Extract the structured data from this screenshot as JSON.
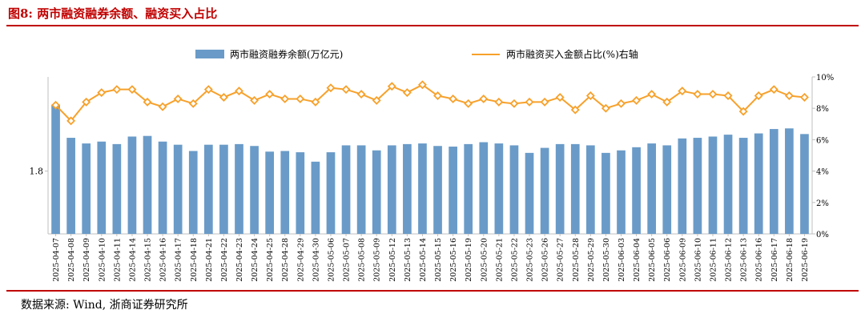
{
  "header": {
    "title": "图8:  两市融资融券余额、融资买入占比"
  },
  "footer": {
    "source": "数据来源:  Wind, 浙商证券研究所"
  },
  "colors": {
    "bar": "#6a9bc8",
    "line": "#f7a12b",
    "rule": "#c00000",
    "title": "#c00000"
  },
  "chart_data": {
    "type": "bar+line",
    "legend_position": "top",
    "grid": false,
    "categories": [
      "2025-04-07",
      "2025-04-08",
      "2025-04-09",
      "2025-04-10",
      "2025-04-11",
      "2025-04-14",
      "2025-04-15",
      "2025-04-16",
      "2025-04-17",
      "2025-04-18",
      "2025-04-21",
      "2025-04-22",
      "2025-04-23",
      "2025-04-24",
      "2025-04-25",
      "2025-04-28",
      "2025-04-29",
      "2025-04-30",
      "2025-05-06",
      "2025-05-07",
      "2025-05-08",
      "2025-05-09",
      "2025-05-12",
      "2025-05-13",
      "2025-05-14",
      "2025-05-15",
      "2025-05-16",
      "2025-05-19",
      "2025-05-20",
      "2025-05-21",
      "2025-05-22",
      "2025-05-23",
      "2025-05-26",
      "2025-05-27",
      "2025-05-28",
      "2025-05-29",
      "2025-05-30",
      "2025-06-03",
      "2025-06-04",
      "2025-06-05",
      "2025-06-06",
      "2025-06-09",
      "2025-06-10",
      "2025-06-11",
      "2025-06-12",
      "2025-06-13",
      "2025-06-16",
      "2025-06-17",
      "2025-06-18",
      "2025-06-19"
    ],
    "series": [
      {
        "name": "两市融资融券余额(万亿元)",
        "type": "bar",
        "axis": "left",
        "values": [
          1.906,
          1.853,
          1.844,
          1.847,
          1.843,
          1.855,
          1.856,
          1.847,
          1.842,
          1.832,
          1.842,
          1.842,
          1.843,
          1.84,
          1.831,
          1.832,
          1.83,
          1.815,
          1.83,
          1.841,
          1.841,
          1.833,
          1.841,
          1.843,
          1.844,
          1.84,
          1.839,
          1.843,
          1.846,
          1.844,
          1.841,
          1.829,
          1.837,
          1.843,
          1.843,
          1.841,
          1.829,
          1.833,
          1.838,
          1.844,
          1.841,
          1.852,
          1.853,
          1.855,
          1.858,
          1.853,
          1.86,
          1.867,
          1.868,
          1.859
        ]
      },
      {
        "name": "两市融资买入金额占比(%)右轴",
        "type": "line",
        "axis": "right",
        "values": [
          8.2,
          7.2,
          8.4,
          9.0,
          9.2,
          9.2,
          8.4,
          8.1,
          8.6,
          8.3,
          9.2,
          8.7,
          9.1,
          8.5,
          8.9,
          8.6,
          8.6,
          8.4,
          9.3,
          9.2,
          8.9,
          8.5,
          9.4,
          9.0,
          9.5,
          8.8,
          8.6,
          8.3,
          8.6,
          8.4,
          8.3,
          8.4,
          8.4,
          8.7,
          7.9,
          8.8,
          8.0,
          8.3,
          8.5,
          8.9,
          8.4,
          9.1,
          8.9,
          8.9,
          8.8,
          7.8,
          8.8,
          9.2,
          8.8,
          8.7
        ]
      }
    ],
    "y_left": {
      "min": 1.7,
      "max": 1.95,
      "tick_labels": [
        "1.8"
      ],
      "tick_values": [
        1.8
      ]
    },
    "y_right": {
      "min": 0,
      "max": 10,
      "tick_labels": [
        "0%",
        "2%",
        "4%",
        "6%",
        "8%",
        "10%"
      ],
      "tick_values": [
        0,
        2,
        4,
        6,
        8,
        10
      ]
    },
    "legend": [
      {
        "label": "两市融资融券余额(万亿元)",
        "kind": "bar"
      },
      {
        "label": "两市融资买入金额占比(%)右轴",
        "kind": "line"
      }
    ]
  }
}
